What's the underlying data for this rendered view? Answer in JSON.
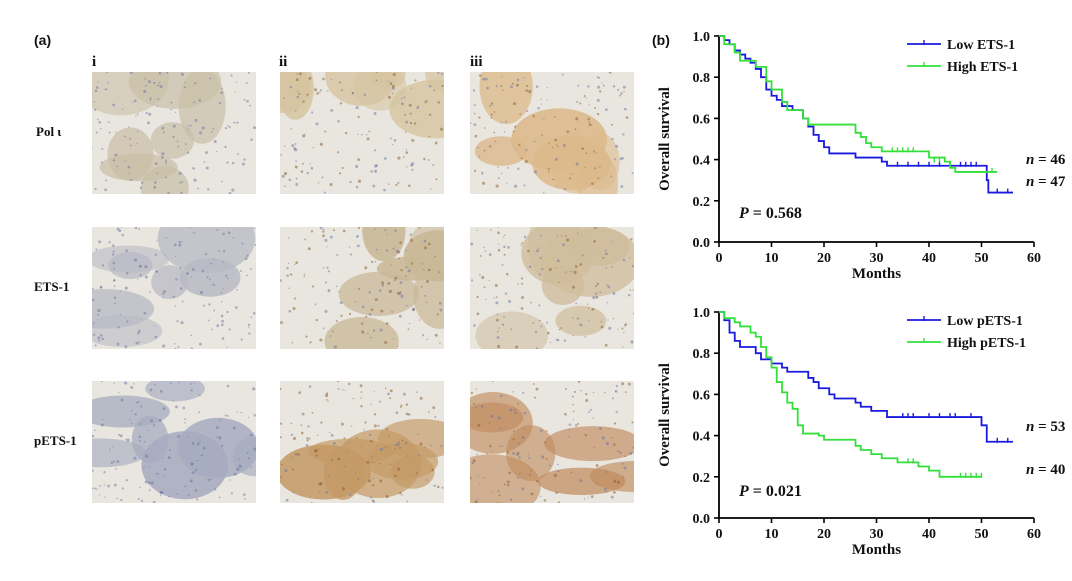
{
  "panel_a": {
    "label": "(a)",
    "columns": [
      "i",
      "ii",
      "iii"
    ],
    "rows": [
      "Pol ι",
      "ETS-1",
      "pETS-1"
    ],
    "tiles": [
      {
        "row": "Pol ι",
        "col": "i",
        "stain": "weak",
        "tone": "#c9bfa8"
      },
      {
        "row": "Pol ι",
        "col": "ii",
        "stain": "moderate",
        "tone": "#d6c4a0"
      },
      {
        "row": "Pol ι",
        "col": "iii",
        "stain": "strong",
        "tone": "#dcb98b"
      },
      {
        "row": "ETS-1",
        "col": "i",
        "stain": "weak",
        "tone": "#b7b9c4"
      },
      {
        "row": "ETS-1",
        "col": "ii",
        "stain": "moderate",
        "tone": "#c9b896"
      },
      {
        "row": "ETS-1",
        "col": "iii",
        "stain": "strong",
        "tone": "#cfbc9c"
      },
      {
        "row": "pETS-1",
        "col": "i",
        "stain": "weak",
        "tone": "#a6abbf"
      },
      {
        "row": "pETS-1",
        "col": "ii",
        "stain": "moderate",
        "tone": "#c49a66"
      },
      {
        "row": "pETS-1",
        "col": "iii",
        "stain": "strong",
        "tone": "#c08a5c"
      }
    ]
  },
  "panel_b": {
    "label": "(b)"
  },
  "chart_data": [
    {
      "type": "line",
      "xlabel": "Months",
      "ylabel": "Overall survival",
      "xlim": [
        0,
        60
      ],
      "ylim": [
        0,
        1.0
      ],
      "x_ticks": [
        "0",
        "10",
        "20",
        "30",
        "40",
        "50",
        "60"
      ],
      "y_ticks": [
        "0.0",
        "0.2",
        "0.4",
        "0.6",
        "0.8",
        "1.0"
      ],
      "annotation": {
        "p_label": "P",
        "p_value": "= 0.568"
      },
      "legend_position": "top-right",
      "series": [
        {
          "name": "Low ETS-1",
          "color": "#1a1adf",
          "n_label": "n",
          "n_value": "= 46",
          "steps": [
            [
              0,
              1.0
            ],
            [
              1,
              0.98
            ],
            [
              2,
              0.96
            ],
            [
              3,
              0.93
            ],
            [
              4,
              0.91
            ],
            [
              5,
              0.89
            ],
            [
              6,
              0.87
            ],
            [
              7,
              0.84
            ],
            [
              8,
              0.8
            ],
            [
              9,
              0.74
            ],
            [
              10,
              0.71
            ],
            [
              11,
              0.69
            ],
            [
              12,
              0.66
            ],
            [
              14,
              0.64
            ],
            [
              16,
              0.6
            ],
            [
              17,
              0.56
            ],
            [
              18,
              0.52
            ],
            [
              19,
              0.49
            ],
            [
              20,
              0.46
            ],
            [
              21,
              0.43
            ],
            [
              26,
              0.41
            ],
            [
              31,
              0.39
            ],
            [
              32,
              0.37
            ],
            [
              51,
              0.3
            ],
            [
              51.3,
              0.24
            ],
            [
              56,
              0.24
            ]
          ],
          "censored": [
            [
              34,
              0.37
            ],
            [
              36,
              0.37
            ],
            [
              38,
              0.37
            ],
            [
              40,
              0.37
            ],
            [
              42,
              0.37
            ],
            [
              44,
              0.37
            ],
            [
              46,
              0.37
            ],
            [
              47,
              0.37
            ],
            [
              48,
              0.37
            ],
            [
              49,
              0.37
            ],
            [
              53,
              0.24
            ],
            [
              55,
              0.24
            ]
          ]
        },
        {
          "name": "High ETS-1",
          "color": "#33e03a",
          "n_label": "n",
          "n_value": "= 47",
          "steps": [
            [
              0,
              1.0
            ],
            [
              1,
              0.96
            ],
            [
              3,
              0.92
            ],
            [
              4,
              0.88
            ],
            [
              7,
              0.85
            ],
            [
              9,
              0.78
            ],
            [
              10,
              0.74
            ],
            [
              12,
              0.68
            ],
            [
              13,
              0.64
            ],
            [
              16,
              0.6
            ],
            [
              17,
              0.57
            ],
            [
              26,
              0.53
            ],
            [
              27,
              0.51
            ],
            [
              28,
              0.48
            ],
            [
              29,
              0.46
            ],
            [
              31,
              0.44
            ],
            [
              40,
              0.41
            ],
            [
              43,
              0.39
            ],
            [
              44,
              0.36
            ],
            [
              45,
              0.34
            ],
            [
              53,
              0.34
            ]
          ],
          "censored": [
            [
              33,
              0.44
            ],
            [
              34,
              0.44
            ],
            [
              35,
              0.44
            ],
            [
              36,
              0.44
            ],
            [
              37,
              0.44
            ],
            [
              41,
              0.39
            ],
            [
              42,
              0.39
            ],
            [
              52,
              0.34
            ]
          ]
        }
      ]
    },
    {
      "type": "line",
      "xlabel": "Months",
      "ylabel": "Overall survival",
      "xlim": [
        0,
        60
      ],
      "ylim": [
        0,
        1.0
      ],
      "x_ticks": [
        "0",
        "10",
        "20",
        "30",
        "40",
        "50",
        "60"
      ],
      "y_ticks": [
        "0.0",
        "0.2",
        "0.4",
        "0.6",
        "0.8",
        "1.0"
      ],
      "annotation": {
        "p_label": "P",
        "p_value": "= 0.021"
      },
      "legend_position": "top-right",
      "series": [
        {
          "name": "Low pETS-1",
          "color": "#1a1adf",
          "n_label": "n",
          "n_value": "= 53",
          "steps": [
            [
              0,
              1.0
            ],
            [
              1,
              0.96
            ],
            [
              2,
              0.9
            ],
            [
              3,
              0.86
            ],
            [
              4,
              0.83
            ],
            [
              7,
              0.8
            ],
            [
              8,
              0.77
            ],
            [
              10,
              0.75
            ],
            [
              12,
              0.73
            ],
            [
              13,
              0.71
            ],
            [
              17,
              0.68
            ],
            [
              18,
              0.66
            ],
            [
              19,
              0.63
            ],
            [
              21,
              0.6
            ],
            [
              22,
              0.58
            ],
            [
              26,
              0.56
            ],
            [
              27,
              0.54
            ],
            [
              29,
              0.52
            ],
            [
              32,
              0.49
            ],
            [
              50,
              0.45
            ],
            [
              51,
              0.37
            ],
            [
              56,
              0.37
            ]
          ],
          "censored": [
            [
              35,
              0.49
            ],
            [
              36,
              0.49
            ],
            [
              37,
              0.49
            ],
            [
              40,
              0.49
            ],
            [
              42,
              0.49
            ],
            [
              44,
              0.49
            ],
            [
              45,
              0.49
            ],
            [
              48,
              0.49
            ],
            [
              53,
              0.37
            ],
            [
              55,
              0.37
            ]
          ]
        },
        {
          "name": "High pETS-1",
          "color": "#33e03a",
          "n_label": "n",
          "n_value": "= 40",
          "steps": [
            [
              0,
              1.0
            ],
            [
              1,
              0.97
            ],
            [
              3,
              0.95
            ],
            [
              4,
              0.93
            ],
            [
              6,
              0.9
            ],
            [
              7,
              0.88
            ],
            [
              8,
              0.83
            ],
            [
              9,
              0.78
            ],
            [
              10,
              0.73
            ],
            [
              11,
              0.66
            ],
            [
              12,
              0.61
            ],
            [
              13,
              0.56
            ],
            [
              14,
              0.53
            ],
            [
              15,
              0.45
            ],
            [
              16,
              0.41
            ],
            [
              19,
              0.4
            ],
            [
              20,
              0.38
            ],
            [
              26,
              0.35
            ],
            [
              27,
              0.33
            ],
            [
              29,
              0.31
            ],
            [
              31,
              0.29
            ],
            [
              34,
              0.27
            ],
            [
              38,
              0.25
            ],
            [
              40,
              0.23
            ],
            [
              42,
              0.2
            ],
            [
              50,
              0.2
            ]
          ],
          "censored": [
            [
              36,
              0.27
            ],
            [
              37,
              0.27
            ],
            [
              46,
              0.2
            ],
            [
              47,
              0.2
            ],
            [
              48,
              0.2
            ],
            [
              49,
              0.2
            ],
            [
              50,
              0.2
            ]
          ]
        }
      ]
    }
  ]
}
